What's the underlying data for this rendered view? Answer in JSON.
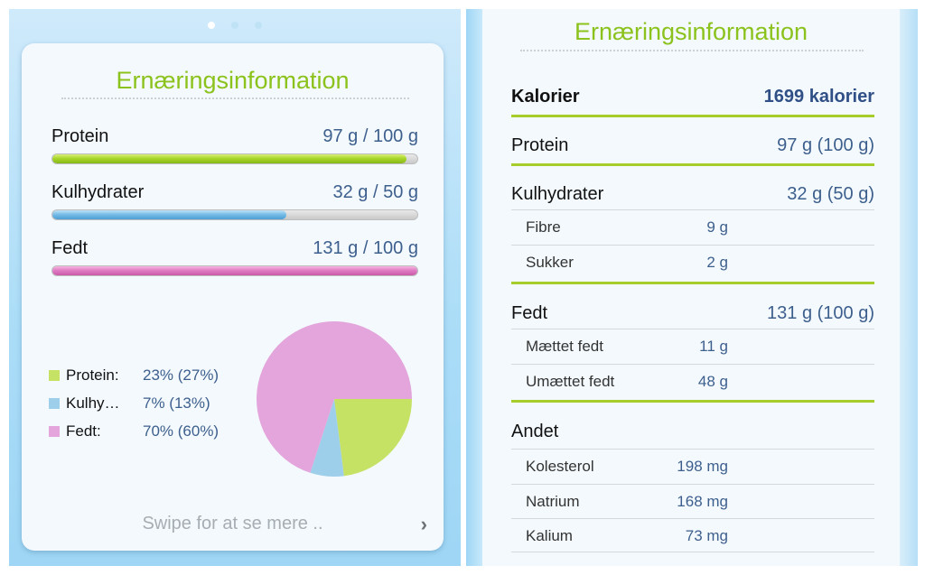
{
  "left": {
    "title": "Ernæringsinformation",
    "bars": [
      {
        "label": "Protein",
        "value": "97 g / 100 g",
        "fraction": 0.97,
        "color": "#9fd22a"
      },
      {
        "label": "Kulhydrater",
        "value": "32 g / 50 g",
        "fraction": 0.64,
        "color": "#6fb8e6"
      },
      {
        "label": "Fedt",
        "value": "131 g / 100 g",
        "fraction": 1.0,
        "color": "#e07cc4"
      }
    ],
    "legend": [
      {
        "name": "Protein:",
        "pct": "23% (27%)",
        "color": "#c5e264"
      },
      {
        "name": "Kulhy…",
        "pct": "7% (13%)",
        "color": "#9ecfea"
      },
      {
        "name": "Fedt:",
        "pct": "70% (60%)",
        "color": "#e3a5db"
      }
    ],
    "swipe_text": "Swipe for at se mere ..",
    "page_dots": 3,
    "active_dot": 0
  },
  "chart_data": {
    "type": "pie",
    "labels": [
      "Protein",
      "Kulhydrater",
      "Fedt"
    ],
    "values": [
      23,
      7,
      70
    ],
    "colors": [
      "#c5e264",
      "#9ecfea",
      "#e3a5db"
    ]
  },
  "right": {
    "title": "Ernæringsinformation",
    "calories": {
      "label": "Kalorier",
      "value": "1699 kalorier"
    },
    "protein": {
      "label": "Protein",
      "value": "97 g (100 g)"
    },
    "carbs": {
      "label": "Kulhydrater",
      "value": "32 g (50 g)"
    },
    "carbs_sub": [
      {
        "label": "Fibre",
        "value": "9 g"
      },
      {
        "label": "Sukker",
        "value": "2 g"
      }
    ],
    "fat": {
      "label": "Fedt",
      "value": "131 g (100 g)"
    },
    "fat_sub": [
      {
        "label": "Mættet fedt",
        "value": "11 g"
      },
      {
        "label": "Umættet fedt",
        "value": "48 g"
      }
    ],
    "other": {
      "label": "Andet"
    },
    "other_sub": [
      {
        "label": "Kolesterol",
        "value": "198 mg"
      },
      {
        "label": "Natrium",
        "value": "168 mg"
      },
      {
        "label": "Kalium",
        "value": "73 mg"
      }
    ]
  }
}
